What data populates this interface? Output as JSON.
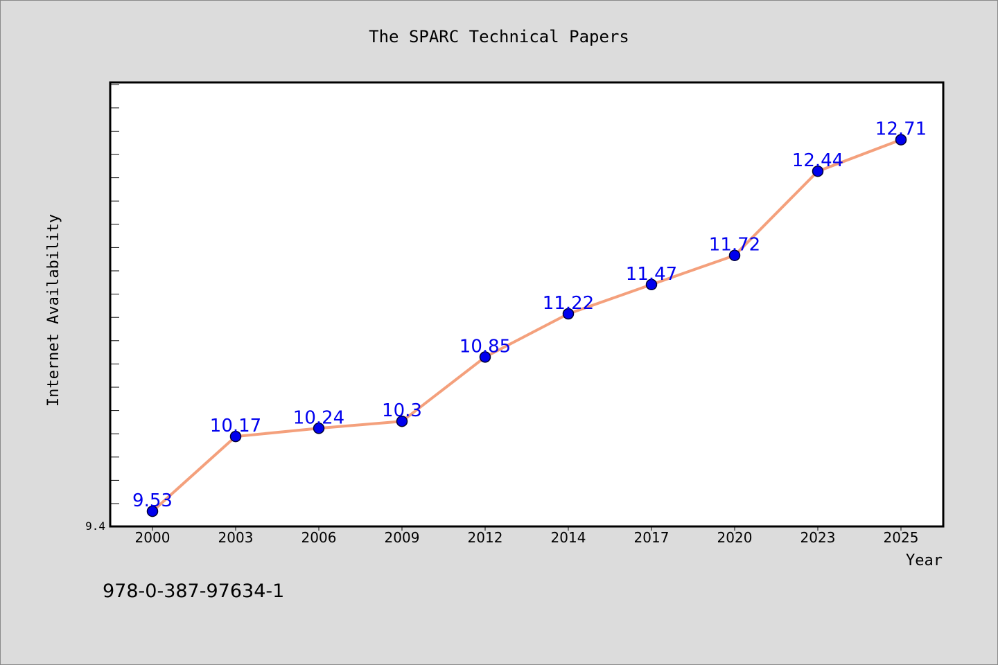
{
  "chart_data": {
    "type": "line",
    "title": "The SPARC Technical Papers",
    "xlabel": "Year",
    "ylabel": "Internet Availability",
    "categories": [
      "2000",
      "2003",
      "2006",
      "2009",
      "2012",
      "2014",
      "2017",
      "2020",
      "2023",
      "2025"
    ],
    "series": [
      {
        "values": [
          9.53,
          10.17,
          10.24,
          10.3,
          10.85,
          11.22,
          11.47,
          11.72,
          12.44,
          12.71
        ],
        "labels": [
          "9.53",
          "10.17",
          "10.24",
          "10.3",
          "10.85",
          "11.22",
          "11.47",
          "11.72",
          "12.44",
          "12.71"
        ]
      }
    ],
    "ylim": [
      9.4,
      13.2
    ],
    "ytick_label": "9.4",
    "grid": false,
    "line_color": "#f4a07c",
    "marker_color": "#0000ee",
    "label_color": "#0000ee"
  },
  "footer_text": "978-0-387-97634-1"
}
